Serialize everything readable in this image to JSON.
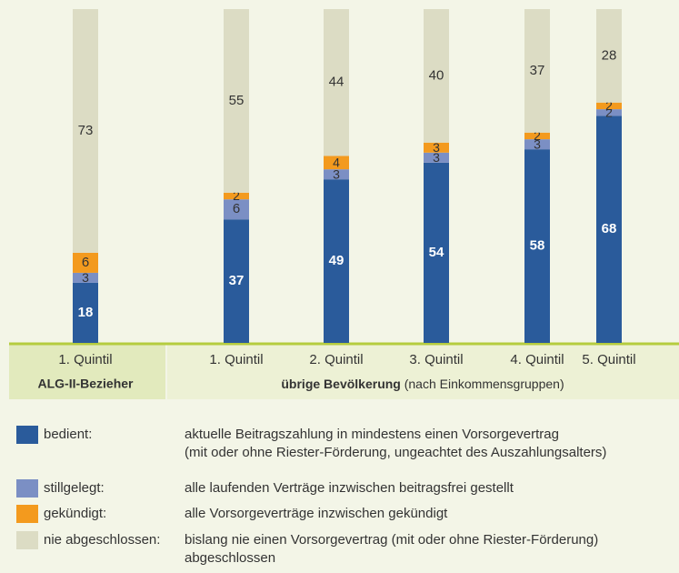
{
  "chart_data": {
    "type": "bar",
    "stacked": true,
    "categories": [
      "1. Quintil",
      "1. Quintil",
      "2. Quintil",
      "3. Quintil",
      "4. Quintil",
      "5. Quintil"
    ],
    "groups": [
      {
        "label_bold": "ALG-II-Bezieher"
      },
      {
        "label_bold": "übrige Bevölkerung",
        "label_rest": "(nach Einkommensgruppen)"
      }
    ],
    "ylim": [
      0,
      100
    ],
    "series": [
      {
        "name": "bedient:",
        "color": "#2a5b9b",
        "values": [
          18,
          37,
          49,
          54,
          58,
          68
        ],
        "description": [
          "aktuelle Beitragszahlung in mindestens einen Vorsorgevertrag",
          "(mit oder ohne Riester-Förderung, ungeachtet des Auszahlungsalters)"
        ]
      },
      {
        "name": "stillgelegt:",
        "color": "#7b8fc4",
        "values": [
          3,
          6,
          3,
          3,
          3,
          2
        ],
        "description": [
          "alle laufenden Verträge inzwischen beitragsfrei gestellt"
        ]
      },
      {
        "name": "gekündigt:",
        "color": "#f39a1e",
        "values": [
          6,
          2,
          4,
          3,
          2,
          2
        ],
        "description": [
          "alle Vorsorgeverträge inzwischen gekündigt"
        ]
      },
      {
        "name": "nie abgeschlossen:",
        "color": "#dcdcc4",
        "values": [
          73,
          55,
          44,
          40,
          37,
          28
        ],
        "description": [
          "bislang nie einen Vorsorgevertrag (mit oder ohne Riester-Förderung)",
          "abgeschlossen"
        ]
      }
    ]
  }
}
